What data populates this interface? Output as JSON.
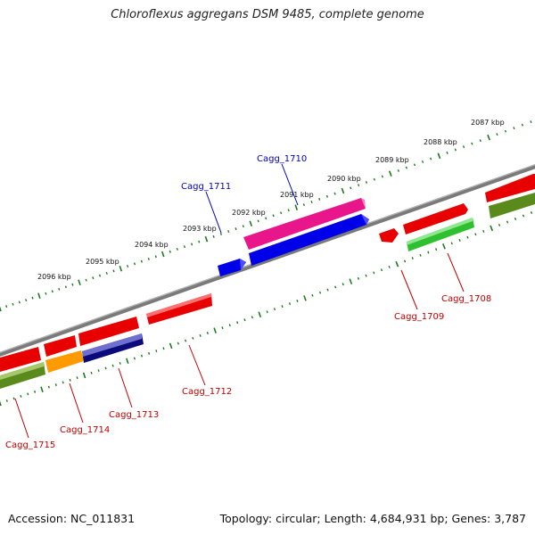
{
  "title": "Chloroflexus aggregans DSM 9485, complete genome",
  "accession": "Accession: NC_011831",
  "summary": "Topology: circular; Length: 4,684,931 bp; Genes: 3,787",
  "colors": {
    "backbone": "#7a7a7a",
    "tick": "#1f7a1f",
    "red": "#e80000",
    "blue": "#0000e8",
    "magenta": "#e8168a",
    "green": "#2fc02f",
    "olive": "#5a8a1c",
    "orange": "#ff9a00",
    "navy": "#0a0a7a",
    "label_top": "#0000c0",
    "label_bottom": "#c00000"
  },
  "kbp_labels": [
    "2087 kbp",
    "2088 kbp",
    "2089 kbp",
    "2090 kbp",
    "2091 kbp",
    "2092 kbp",
    "2093 kbp",
    "2094 kbp",
    "2095 kbp",
    "2096 kbp"
  ],
  "gene_labels": {
    "top": [
      "Cagg_1710",
      "Cagg_1711"
    ],
    "bottom": [
      "Cagg_1708",
      "Cagg_1709",
      "Cagg_1712",
      "Cagg_1713",
      "Cagg_1714",
      "Cagg_1715"
    ]
  }
}
